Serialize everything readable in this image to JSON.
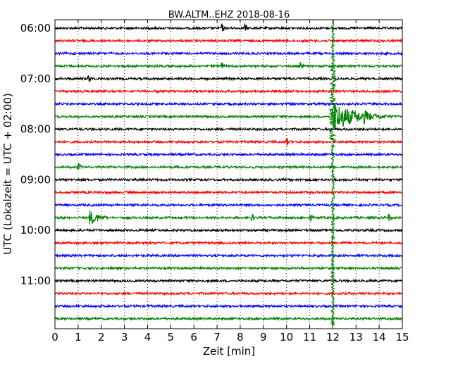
{
  "chart_data": {
    "type": "line",
    "title": "BW.ALTM..EHZ 2018-08-16",
    "xlabel": "Zeit  [min]",
    "ylabel": "UTC (Lokalzeit = UTC + 02:00)",
    "xlim": [
      0,
      15
    ],
    "x_ticks": [
      "0",
      "1",
      "2",
      "3",
      "4",
      "5",
      "6",
      "7",
      "8",
      "9",
      "10",
      "11",
      "12",
      "13",
      "14",
      "15"
    ],
    "y_ticks": [
      "06:00",
      "07:00",
      "08:00",
      "09:00",
      "10:00",
      "11:00"
    ],
    "trace_count": 24,
    "trace_interval_min": 15,
    "start_time": "06:00",
    "trace_colors": [
      "#000000",
      "#ff0000",
      "#0000ff",
      "#008000"
    ],
    "grid": "vertical dotted",
    "events": [
      {
        "trace_start": "06:00",
        "minute": 7.2,
        "amplitude": "small"
      },
      {
        "trace_start": "06:00",
        "minute": 8.2,
        "amplitude": "small"
      },
      {
        "trace_start": "06:45",
        "minute": 7.2,
        "amplitude": "small"
      },
      {
        "trace_start": "06:45",
        "minute": 10.6,
        "amplitude": "small"
      },
      {
        "trace_start": "07:00",
        "minute": 1.45,
        "amplitude": "small"
      },
      {
        "trace_start": "07:45",
        "minute": 12.0,
        "amplitude": "large"
      },
      {
        "trace_start": "07:45",
        "minute": 13.3,
        "amplitude": "medium"
      },
      {
        "trace_start": "08:15",
        "minute": 10.0,
        "amplitude": "small"
      },
      {
        "trace_start": "08:45",
        "minute": 1.0,
        "amplitude": "small"
      },
      {
        "trace_start": "09:45",
        "minute": 1.5,
        "amplitude": "medium"
      },
      {
        "trace_start": "09:45",
        "minute": 8.5,
        "amplitude": "small"
      },
      {
        "trace_start": "09:45",
        "minute": 11.0,
        "amplitude": "small"
      },
      {
        "trace_start": "09:45",
        "minute": 14.4,
        "amplitude": "small"
      },
      {
        "trace_start": "06:00",
        "minute": 12.0,
        "amplitude": "large",
        "note": "continuous across traces"
      }
    ]
  }
}
